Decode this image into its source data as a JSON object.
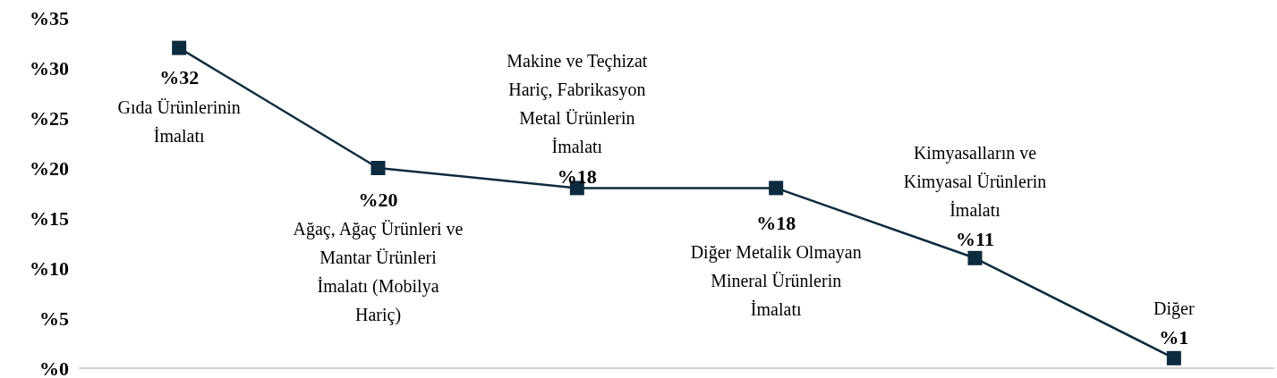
{
  "chart_data": {
    "type": "line",
    "categories": [
      "Gıda Ürünlerinin İmalatı",
      "Ağaç, Ağaç Ürünleri ve Mantar Ürünleri İmalatı (Mobilya Hariç)",
      "Makine ve Teçhizat Hariç, Fabrikasyon Metal Ürünlerin İmalatı",
      "Diğer Metalik Olmayan Mineral Ürünlerin İmalatı",
      "Kimyasalların ve Kimyasal Ürünlerin İmalatı",
      "Diğer"
    ],
    "series": [
      {
        "color": "#0d2b3e",
        "values": [
          32,
          20,
          18,
          18,
          11,
          1
        ],
        "value_labels": [
          "%32",
          "%20",
          "%18",
          "%18",
          "%11",
          "%1"
        ]
      }
    ],
    "ylim": [
      0,
      35
    ],
    "yticks": [
      {
        "value": 0,
        "label": "%0"
      },
      {
        "value": 5,
        "label": "%5"
      },
      {
        "value": 10,
        "label": "%10"
      },
      {
        "value": 15,
        "label": "%15"
      },
      {
        "value": 20,
        "label": "%20"
      },
      {
        "value": 25,
        "label": "%25"
      },
      {
        "value": 30,
        "label": "%30"
      },
      {
        "value": 35,
        "label": "%35"
      }
    ],
    "grid": false,
    "marker": "square",
    "line_style": "solid",
    "tick_labels": "y"
  }
}
